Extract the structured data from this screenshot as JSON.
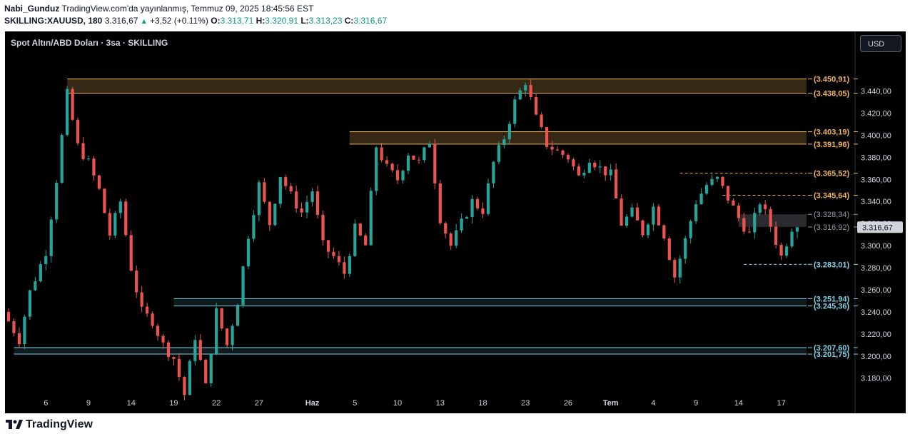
{
  "header": {
    "author": "Nabi_Gunduz",
    "published": "TradingView.com'da yayınlanmış, Temmuz 09, 2025 18:45:56 EST",
    "symbol": "SKILLING:XAUUSD, 180",
    "last": "3.316,67",
    "change": "+3,52 (+0.11%)",
    "o_label": "O:",
    "o": "3.313,71",
    "h_label": "H:",
    "h": "3.320,91",
    "l_label": "L:",
    "l": "3.313,23",
    "c_label": "C:",
    "c": "3.316,67"
  },
  "chart_title": "Spot Altın/ABD Doları · 3sa · SKILLING",
  "currency_button": "USD",
  "footer_logo": "TradingView",
  "colors": {
    "background": "#000000",
    "up": "#26a69a",
    "down": "#ef5350",
    "resistance": "#f0b45a",
    "support": "#7fd4e8",
    "axis_text": "#d1d4dc"
  },
  "chart_data": {
    "type": "candlestick",
    "title": "Spot Altın/ABD Doları · 3sa · SKILLING",
    "ylim": [
      3163,
      3494
    ],
    "y_ticks": [
      "3.180,00",
      "3.200,00",
      "3.220,00",
      "3.240,00",
      "3.260,00",
      "3.280,00",
      "3.300,00",
      "3.320,00",
      "3.340,00",
      "3.360,00",
      "3.380,00",
      "3.400,00",
      "3.420,00",
      "3.440,00"
    ],
    "y_tick_values": [
      3180,
      3200,
      3220,
      3240,
      3260,
      3280,
      3300,
      3320,
      3340,
      3360,
      3380,
      3400,
      3420,
      3440
    ],
    "x_ticks": [
      "6",
      "9",
      "14",
      "19",
      "22",
      "27",
      "Haz",
      "5",
      "10",
      "13",
      "18",
      "23",
      "26",
      "Tem",
      "4",
      "9",
      "14",
      "17"
    ],
    "x_tick_index": [
      7,
      15,
      23,
      31,
      39,
      47,
      57,
      65,
      73,
      81,
      89,
      97,
      105,
      113,
      121,
      129,
      137,
      145
    ],
    "candles_count": 130,
    "waypoints": [
      [
        0,
        3240
      ],
      [
        3,
        3215
      ],
      [
        5,
        3258
      ],
      [
        8,
        3295
      ],
      [
        10,
        3360
      ],
      [
        12,
        3437
      ],
      [
        14,
        3390
      ],
      [
        16,
        3375
      ],
      [
        18,
        3350
      ],
      [
        20,
        3310
      ],
      [
        22,
        3340
      ],
      [
        24,
        3280
      ],
      [
        26,
        3240
      ],
      [
        28,
        3232
      ],
      [
        30,
        3210
      ],
      [
        32,
        3198
      ],
      [
        34,
        3165
      ],
      [
        36,
        3218
      ],
      [
        38,
        3172
      ],
      [
        40,
        3240
      ],
      [
        42,
        3210
      ],
      [
        44,
        3250
      ],
      [
        46,
        3310
      ],
      [
        48,
        3355
      ],
      [
        50,
        3320
      ],
      [
        52,
        3364
      ],
      [
        54,
        3345
      ],
      [
        56,
        3330
      ],
      [
        58,
        3350
      ],
      [
        60,
        3300
      ],
      [
        62,
        3290
      ],
      [
        64,
        3275
      ],
      [
        66,
        3315
      ],
      [
        68,
        3300
      ],
      [
        70,
        3390
      ],
      [
        72,
        3370
      ],
      [
        74,
        3360
      ],
      [
        76,
        3384
      ],
      [
        78,
        3375
      ],
      [
        80,
        3395
      ],
      [
        82,
        3325
      ],
      [
        84,
        3300
      ],
      [
        86,
        3320
      ],
      [
        88,
        3340
      ],
      [
        90,
        3332
      ],
      [
        92,
        3375
      ],
      [
        94,
        3398
      ],
      [
        96,
        3430
      ],
      [
        98,
        3449
      ],
      [
        100,
        3415
      ],
      [
        102,
        3392
      ],
      [
        104,
        3385
      ],
      [
        106,
        3380
      ],
      [
        108,
        3362
      ],
      [
        110,
        3380
      ],
      [
        112,
        3370
      ],
      [
        114,
        3364
      ],
      [
        116,
        3320
      ],
      [
        118,
        3330
      ],
      [
        120,
        3312
      ],
      [
        122,
        3335
      ],
      [
        124,
        3310
      ],
      [
        126,
        3272
      ],
      [
        128,
        3305
      ],
      [
        130,
        3340
      ],
      [
        132,
        3355
      ],
      [
        134,
        3360
      ],
      [
        136,
        3343
      ],
      [
        138,
        3325
      ],
      [
        140,
        3310
      ],
      [
        142,
        3340
      ],
      [
        144,
        3318
      ],
      [
        146,
        3290
      ],
      [
        148,
        3316.67
      ]
    ],
    "levels": [
      {
        "label": "3.450,91",
        "value": 3450.91,
        "kind": "resistance",
        "zone": "top"
      },
      {
        "label": "3.438,05",
        "value": 3438.05,
        "kind": "resistance",
        "zone": "top"
      },
      {
        "label": "3.403,19",
        "value": 3403.19,
        "kind": "resistance",
        "zone": "mid"
      },
      {
        "label": "3.391,96",
        "value": 3391.96,
        "kind": "resistance",
        "zone": "mid"
      },
      {
        "label": "3.365,52",
        "value": 3365.52,
        "kind": "resistance-dashed"
      },
      {
        "label": "3.345,64",
        "value": 3345.64,
        "kind": "resistance-dashed"
      },
      {
        "label": "3.328,34",
        "value": 3328.34,
        "kind": "grey"
      },
      {
        "label": "3.316,92",
        "value": 3316.92,
        "kind": "grey"
      },
      {
        "label": "3.283,01",
        "value": 3283.01,
        "kind": "support-dashed"
      },
      {
        "label": "3.251,94",
        "value": 3251.94,
        "kind": "support",
        "zone": "s1"
      },
      {
        "label": "3.245,36",
        "value": 3245.36,
        "kind": "support",
        "zone": "s1"
      },
      {
        "label": "3.207,60",
        "value": 3207.6,
        "kind": "support",
        "zone": "s2"
      },
      {
        "label": "3.201,75",
        "value": 3201.75,
        "kind": "support",
        "zone": "s2"
      }
    ],
    "current_price": {
      "label": "3.316,67",
      "value": 3316.67
    }
  }
}
